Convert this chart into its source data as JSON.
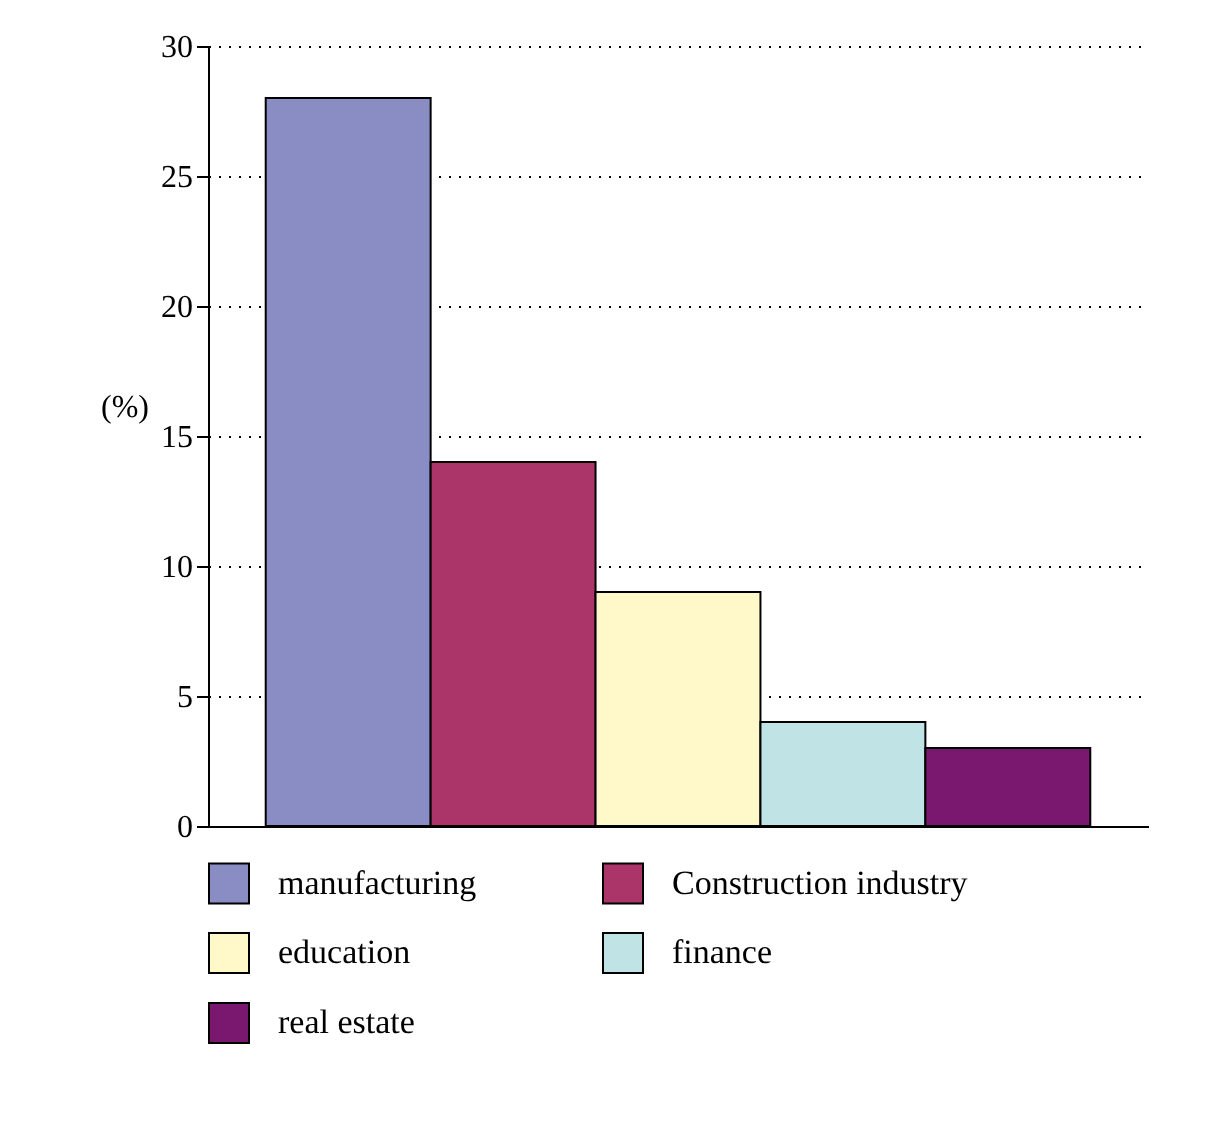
{
  "chart_data": {
    "type": "bar",
    "ylabel": "(%)",
    "categories": [
      null,
      null,
      null,
      null,
      null
    ],
    "series": [
      {
        "name": "manufacturing",
        "color": "#8a8cc4",
        "values": [
          28,
          null,
          null,
          null,
          null
        ]
      },
      {
        "name": "Construction industry",
        "color": "#ab3468",
        "values": [
          null,
          14,
          null,
          null,
          null
        ]
      },
      {
        "name": "education",
        "color": "#fff8c8",
        "values": [
          null,
          null,
          9,
          null,
          null
        ]
      },
      {
        "name": "finance",
        "color": "#c0e4e6",
        "values": [
          null,
          null,
          null,
          4,
          null
        ]
      },
      {
        "name": "real estate",
        "color": "#7a1870",
        "values": [
          null,
          null,
          null,
          null,
          3
        ]
      }
    ],
    "ylim": [
      0,
      30
    ],
    "yticks": [
      0,
      5,
      10,
      15,
      20,
      25,
      30
    ],
    "grid": "y",
    "legend": "bottom",
    "tick_labels": "y"
  }
}
